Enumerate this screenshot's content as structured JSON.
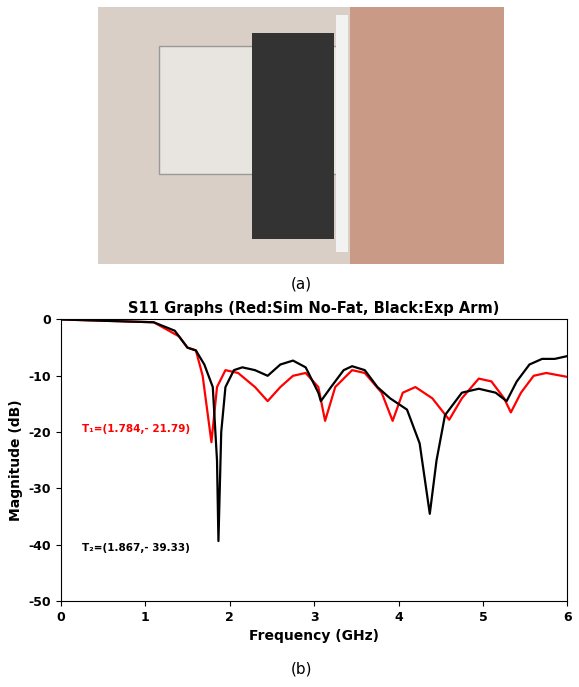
{
  "chart_data": {
    "type": "line",
    "title": "S11 Graphs (Red:Sim No-Fat, Black:Exp Arm)",
    "x_label": "Frequency (GHz)",
    "y_label": "Magnitude (dB)",
    "panel_labels": [
      "(a)",
      "(b)"
    ],
    "xlim": [
      0,
      6
    ],
    "xticks": [
      0,
      1,
      2,
      3,
      4,
      5,
      6
    ],
    "ylim": [
      -50,
      0
    ],
    "yticks": [
      -50,
      -40,
      -30,
      -20,
      -10,
      0
    ],
    "grid": false,
    "series": [
      {
        "color": "#ff0000",
        "x": [
          0,
          1.1,
          1.4,
          1.5,
          1.6,
          1.68,
          1.784,
          1.85,
          1.95,
          2.1,
          2.3,
          2.45,
          2.6,
          2.75,
          2.9,
          3.05,
          3.13,
          3.25,
          3.45,
          3.6,
          3.8,
          3.93,
          4.05,
          4.2,
          4.4,
          4.6,
          4.75,
          4.95,
          5.1,
          5.25,
          5.33,
          5.45,
          5.6,
          5.75,
          6
        ],
        "values": [
          0,
          -0.5,
          -3,
          -5,
          -5.5,
          -10,
          -21.79,
          -12,
          -9,
          -9.5,
          -12,
          -14.5,
          -12,
          -10,
          -9.5,
          -12,
          -18,
          -12,
          -9,
          -9.5,
          -13,
          -18,
          -13,
          -12,
          -14,
          -17.8,
          -14,
          -10.5,
          -11,
          -14,
          -16.5,
          -13,
          -10,
          -9.5,
          -10.2
        ]
      },
      {
        "color": "#000000",
        "x": [
          0,
          1.1,
          1.35,
          1.5,
          1.6,
          1.7,
          1.8,
          1.85,
          1.867,
          1.9,
          1.95,
          2.05,
          2.15,
          2.3,
          2.45,
          2.6,
          2.75,
          2.9,
          3.05,
          3.08,
          3.2,
          3.35,
          3.45,
          3.6,
          3.75,
          3.9,
          4.1,
          4.25,
          4.37,
          4.45,
          4.55,
          4.75,
          4.95,
          5.15,
          5.28,
          5.4,
          5.55,
          5.7,
          5.85,
          6
        ],
        "values": [
          0,
          -0.5,
          -2,
          -5,
          -5.5,
          -8,
          -12,
          -25,
          -39.33,
          -20,
          -12,
          -9,
          -8.5,
          -9,
          -10,
          -8,
          -7.3,
          -8.5,
          -13,
          -14.5,
          -12,
          -9,
          -8.3,
          -9,
          -12,
          -14,
          -16,
          -22,
          -34.5,
          -25,
          -17,
          -13,
          -12.3,
          -13,
          -14.5,
          -11,
          -8,
          -7,
          -7,
          -6.5
        ]
      }
    ],
    "annotations": [
      {
        "text": "T₁=(1.784,- 21.79)",
        "x": 0.25,
        "y": -19.5,
        "color": "#ff0000"
      },
      {
        "text": "T₂=(1.867,- 39.33)",
        "x": 0.25,
        "y": -40.5,
        "color": "#000000"
      }
    ]
  }
}
